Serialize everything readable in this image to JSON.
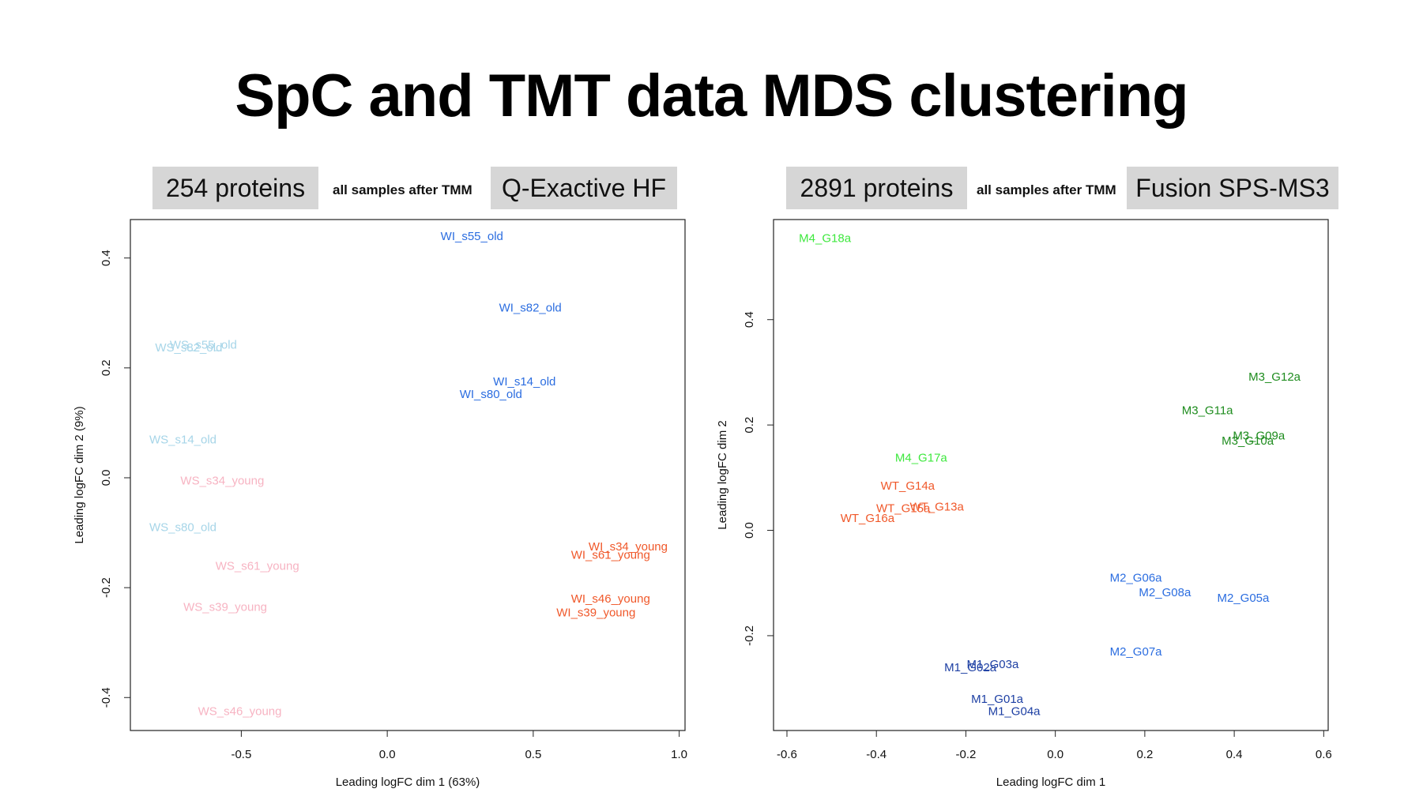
{
  "slide": {
    "title": "SpC and TMT data MDS clustering"
  },
  "panels": [
    {
      "protein_count": "254 proteins",
      "note": "all samples after TMM",
      "instrument": "Q-Exactive HF"
    },
    {
      "protein_count": "2891 proteins",
      "note": "all samples after TMM",
      "instrument": "Fusion SPS-MS3"
    }
  ],
  "chart_data": [
    {
      "type": "scatter",
      "title": "",
      "xlabel": "Leading logFC dim 1 (63%)",
      "ylabel": "Leading logFC dim 2 (9%)",
      "xlim": [
        -0.88,
        1.02
      ],
      "ylim": [
        -0.46,
        0.47
      ],
      "xticks": [
        -0.5,
        0.0,
        0.5,
        1.0
      ],
      "xtick_labels": [
        "-0.5",
        "0.0",
        "0.5",
        "1.0"
      ],
      "yticks": [
        -0.4,
        -0.2,
        0.0,
        0.2,
        0.4
      ],
      "ytick_labels": [
        "-0.4",
        "-0.2",
        "0.0",
        "0.2",
        "0.4"
      ],
      "grid": false,
      "points": [
        {
          "label": "WI_s55_old",
          "x": 0.29,
          "y": 0.44,
          "color": "#2b6de0"
        },
        {
          "label": "WI_s82_old",
          "x": 0.49,
          "y": 0.31,
          "color": "#2b6de0"
        },
        {
          "label": "WI_s14_old",
          "x": 0.47,
          "y": 0.175,
          "color": "#2b6de0"
        },
        {
          "label": "WI_s80_old",
          "x": 0.355,
          "y": 0.152,
          "color": "#2b6de0"
        },
        {
          "label": "WS_s55_old",
          "x": -0.63,
          "y": 0.242,
          "color": "#a6d5e8"
        },
        {
          "label": "WS_s82_old",
          "x": -0.68,
          "y": 0.237,
          "color": "#a6d5e8"
        },
        {
          "label": "WS_s14_old",
          "x": -0.7,
          "y": 0.07,
          "color": "#a6d5e8"
        },
        {
          "label": "WS_s80_old",
          "x": -0.7,
          "y": -0.09,
          "color": "#a6d5e8"
        },
        {
          "label": "WS_s34_young",
          "x": -0.565,
          "y": -0.005,
          "color": "#f7b3c2"
        },
        {
          "label": "WS_s61_young",
          "x": -0.445,
          "y": -0.16,
          "color": "#f7b3c2"
        },
        {
          "label": "WS_s39_young",
          "x": -0.555,
          "y": -0.235,
          "color": "#f7b3c2"
        },
        {
          "label": "WS_s46_young",
          "x": -0.505,
          "y": -0.425,
          "color": "#f7b3c2"
        },
        {
          "label": "WI_s34_young",
          "x": 0.825,
          "y": -0.125,
          "color": "#f0582a"
        },
        {
          "label": "WI_s61_young",
          "x": 0.765,
          "y": -0.14,
          "color": "#f0582a"
        },
        {
          "label": "WI_s46_young",
          "x": 0.765,
          "y": -0.22,
          "color": "#f0582a"
        },
        {
          "label": "WI_s39_young",
          "x": 0.715,
          "y": -0.245,
          "color": "#f0582a"
        }
      ]
    },
    {
      "type": "scatter",
      "title": "",
      "xlabel": "Leading logFC dim 1",
      "ylabel": "Leading logFC dim 2",
      "xlim": [
        -0.63,
        0.61
      ],
      "ylim": [
        -0.38,
        0.59
      ],
      "xticks": [
        -0.6,
        -0.4,
        -0.2,
        0.0,
        0.2,
        0.4,
        0.6
      ],
      "xtick_labels": [
        "-0.6",
        "-0.4",
        "-0.2",
        "0.0",
        "0.2",
        "0.4",
        "0.6"
      ],
      "yticks": [
        -0.2,
        0.0,
        0.2,
        0.4
      ],
      "ytick_labels": [
        "-0.2",
        "0.0",
        "0.2",
        "0.4"
      ],
      "grid": false,
      "points": [
        {
          "label": "M4_G18a",
          "x": -0.515,
          "y": 0.555,
          "color": "#3ee83e"
        },
        {
          "label": "M4_G17a",
          "x": -0.3,
          "y": 0.138,
          "color": "#3ee83e"
        },
        {
          "label": "M3_G12a",
          "x": 0.49,
          "y": 0.292,
          "color": "#1e8c1e"
        },
        {
          "label": "M3_G11a",
          "x": 0.34,
          "y": 0.228,
          "color": "#1e8c1e"
        },
        {
          "label": "M3_G09a",
          "x": 0.455,
          "y": 0.18,
          "color": "#1e8c1e"
        },
        {
          "label": "M3_G10a",
          "x": 0.43,
          "y": 0.17,
          "color": "#1e8c1e"
        },
        {
          "label": "WT_G14a",
          "x": -0.33,
          "y": 0.085,
          "color": "#f0582a"
        },
        {
          "label": "WT_G13a",
          "x": -0.265,
          "y": 0.045,
          "color": "#f0582a"
        },
        {
          "label": "WT_G15a",
          "x": -0.34,
          "y": 0.042,
          "color": "#f0582a"
        },
        {
          "label": "WT_G16a",
          "x": -0.42,
          "y": 0.023,
          "color": "#f0582a"
        },
        {
          "label": "M2_G06a",
          "x": 0.18,
          "y": -0.09,
          "color": "#2b6de0"
        },
        {
          "label": "M2_G08a",
          "x": 0.245,
          "y": -0.118,
          "color": "#2b6de0"
        },
        {
          "label": "M2_G05a",
          "x": 0.42,
          "y": -0.128,
          "color": "#2b6de0"
        },
        {
          "label": "M2_G07a",
          "x": 0.18,
          "y": -0.23,
          "color": "#2b6de0"
        },
        {
          "label": "M1_G03a",
          "x": -0.14,
          "y": -0.254,
          "color": "#1d3fa3"
        },
        {
          "label": "M1_G02a",
          "x": -0.19,
          "y": -0.26,
          "color": "#1d3fa3"
        },
        {
          "label": "M1_G01a",
          "x": -0.13,
          "y": -0.32,
          "color": "#1d3fa3"
        },
        {
          "label": "M1_G04a",
          "x": -0.092,
          "y": -0.343,
          "color": "#1d3fa3"
        }
      ]
    }
  ]
}
